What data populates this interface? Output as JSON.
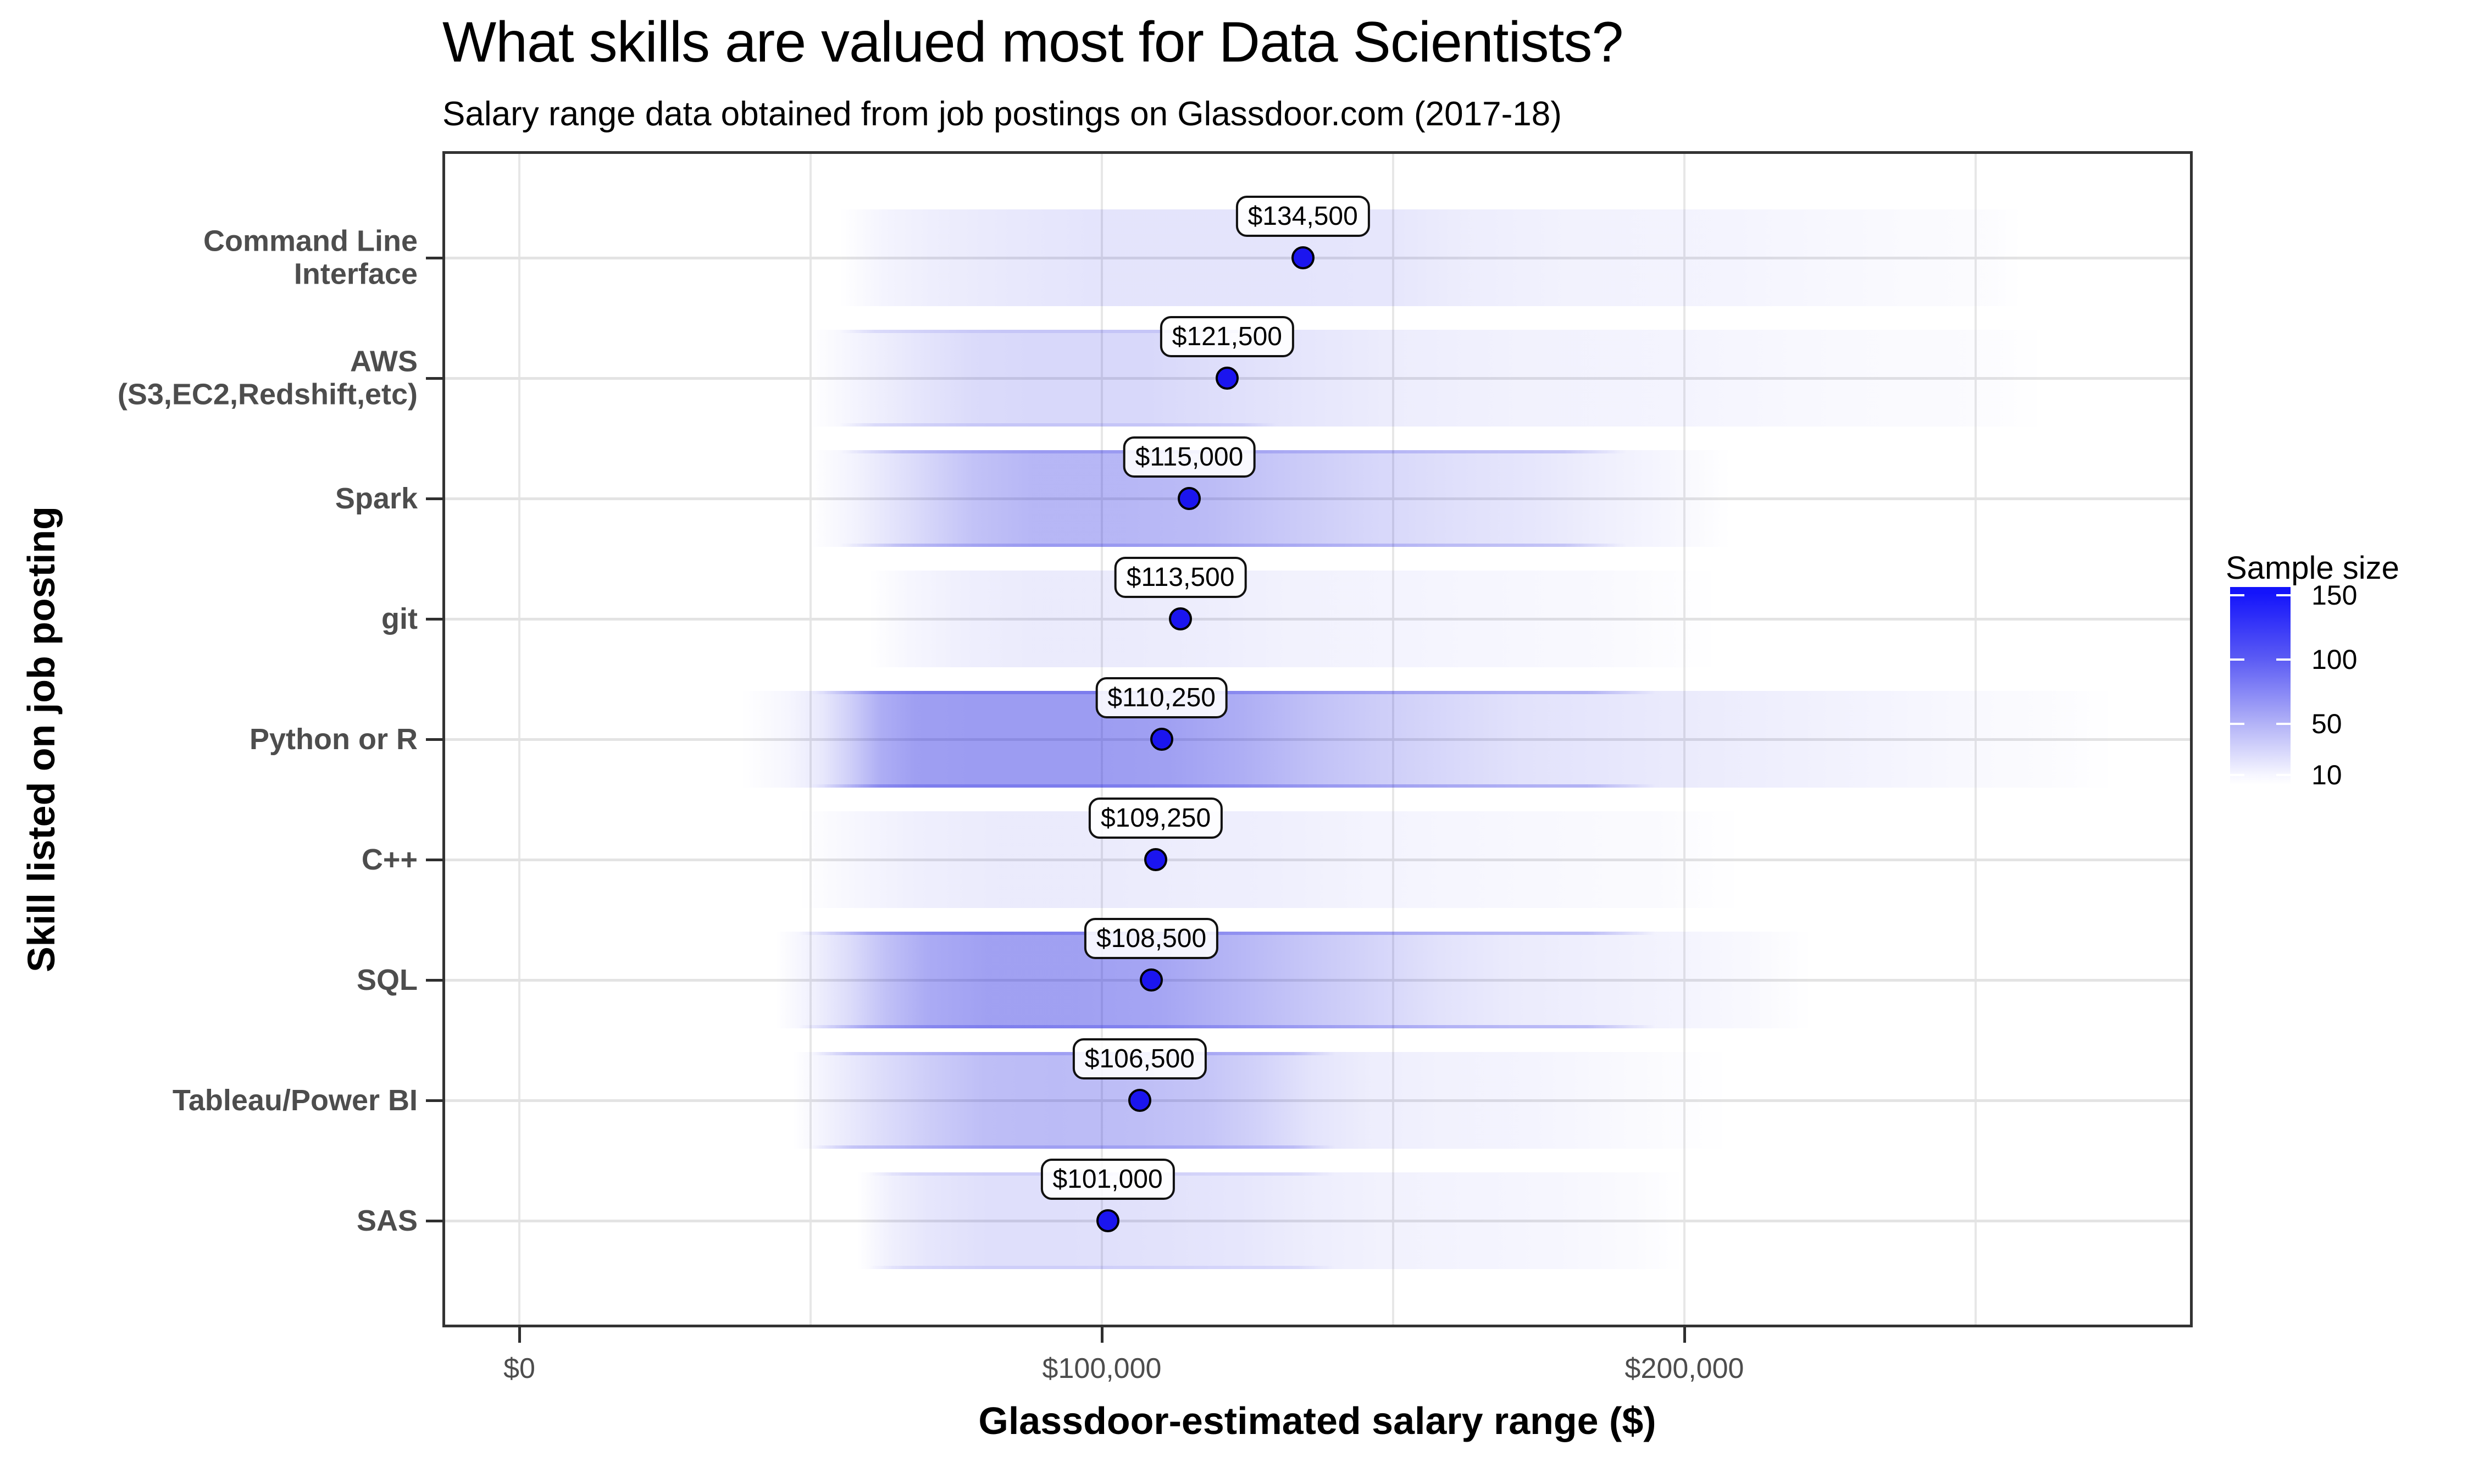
{
  "header": {
    "title": "What skills are valued most for Data Scientists?",
    "subtitle": "Salary range data obtained from job postings on Glassdoor.com (2017-18)"
  },
  "chart_data": {
    "type": "heatmap",
    "subtype": "salary-range-density-strips",
    "title": "What skills are valued most for Data Scientists?",
    "subtitle": "Salary range data obtained from job postings on Glassdoor.com (2017-18)",
    "xlabel": "Glassdoor-estimated salary range ($)",
    "ylabel": "Skill listed on job posting",
    "xlim_k": [
      -13,
      287
    ],
    "grid": "on",
    "x_gridlines_k": [
      0,
      50,
      100,
      150,
      200,
      250
    ],
    "x_ticks": [
      {
        "label": "$0",
        "value_k": 0
      },
      {
        "label": "$100,000",
        "value_k": 100
      },
      {
        "label": "$200,000",
        "value_k": 200
      }
    ],
    "legend": {
      "title": "Sample size",
      "position": "right",
      "ticks": [
        150,
        100,
        50,
        10
      ],
      "color_high": "#1414fb",
      "color_low": "#ffffff"
    },
    "rows": [
      {
        "skill": "Command Line Interface",
        "skill_lines": [
          "Command Line",
          "Interface"
        ],
        "median_label": "$134,500",
        "median_k": 134.5,
        "density": [
          [
            55,
            0
          ],
          [
            63,
            17
          ],
          [
            72,
            27
          ],
          [
            85,
            34
          ],
          [
            100,
            41
          ],
          [
            128,
            41
          ],
          [
            150,
            37
          ],
          [
            163,
            27
          ],
          [
            180,
            20
          ],
          [
            205,
            17
          ],
          [
            232,
            10
          ],
          [
            252,
            5
          ],
          [
            258,
            0
          ]
        ]
      },
      {
        "skill": "AWS (S3,EC2,Redshift,etc)",
        "skill_lines": [
          "AWS",
          "(S3,EC2,Redshift,etc)"
        ],
        "median_label": "$121,500",
        "median_k": 121.5,
        "density": [
          [
            50,
            0
          ],
          [
            58,
            17
          ],
          [
            68,
            37
          ],
          [
            78,
            54
          ],
          [
            88,
            58
          ],
          [
            108,
            58
          ],
          [
            122,
            48
          ],
          [
            136,
            37
          ],
          [
            152,
            27
          ],
          [
            172,
            20
          ],
          [
            196,
            17
          ],
          [
            225,
            10
          ],
          [
            248,
            7
          ],
          [
            262,
            0
          ]
        ],
        "edge": {
          "from_k": 55,
          "to_k": 130
        }
      },
      {
        "skill": "Spark",
        "skill_lines": [
          "Spark"
        ],
        "median_label": "$115,000",
        "median_k": 115,
        "density": [
          [
            50,
            0
          ],
          [
            58,
            20
          ],
          [
            68,
            54
          ],
          [
            78,
            92
          ],
          [
            88,
            109
          ],
          [
            104,
            109
          ],
          [
            118,
            102
          ],
          [
            132,
            82
          ],
          [
            146,
            61
          ],
          [
            160,
            48
          ],
          [
            174,
            37
          ],
          [
            186,
            24
          ],
          [
            197,
            14
          ],
          [
            208,
            0
          ]
        ],
        "edge": {
          "from_k": 55,
          "to_k": 190
        }
      },
      {
        "skill": "git",
        "skill_lines": [
          "git"
        ],
        "median_label": "$113,500",
        "median_k": 113.5,
        "density": [
          [
            60,
            0
          ],
          [
            67,
            14
          ],
          [
            76,
            24
          ],
          [
            88,
            31
          ],
          [
            104,
            31
          ],
          [
            118,
            27
          ],
          [
            132,
            20
          ],
          [
            148,
            17
          ],
          [
            166,
            14
          ],
          [
            186,
            10
          ],
          [
            206,
            0
          ]
        ]
      },
      {
        "skill": "Python or R",
        "skill_lines": [
          "Python or R"
        ],
        "median_label": "$110,250",
        "median_k": 110.25,
        "density": [
          [
            38,
            0
          ],
          [
            46,
            14
          ],
          [
            52,
            34
          ],
          [
            57,
            75
          ],
          [
            62,
            122
          ],
          [
            68,
            146
          ],
          [
            78,
            150
          ],
          [
            98,
            150
          ],
          [
            112,
            143
          ],
          [
            124,
            122
          ],
          [
            136,
            95
          ],
          [
            148,
            75
          ],
          [
            160,
            58
          ],
          [
            172,
            44
          ],
          [
            186,
            37
          ],
          [
            200,
            31
          ],
          [
            216,
            24
          ],
          [
            232,
            17
          ],
          [
            250,
            10
          ],
          [
            264,
            5
          ],
          [
            274,
            0
          ]
        ],
        "edge": {
          "from_k": 50,
          "to_k": 195
        }
      },
      {
        "skill": "C++",
        "skill_lines": [
          "C++"
        ],
        "median_label": "$109,250",
        "median_k": 109.25,
        "density": [
          [
            48,
            0
          ],
          [
            58,
            14
          ],
          [
            68,
            24
          ],
          [
            82,
            31
          ],
          [
            100,
            31
          ],
          [
            116,
            27
          ],
          [
            130,
            24
          ],
          [
            145,
            17
          ],
          [
            162,
            14
          ],
          [
            180,
            10
          ],
          [
            196,
            7
          ],
          [
            210,
            0
          ]
        ]
      },
      {
        "skill": "SQL",
        "skill_lines": [
          "SQL"
        ],
        "median_label": "$108,500",
        "median_k": 108.5,
        "density": [
          [
            44,
            0
          ],
          [
            51,
            24
          ],
          [
            57,
            54
          ],
          [
            63,
            95
          ],
          [
            70,
            126
          ],
          [
            80,
            143
          ],
          [
            96,
            143
          ],
          [
            110,
            136
          ],
          [
            122,
            112
          ],
          [
            134,
            88
          ],
          [
            146,
            65
          ],
          [
            158,
            44
          ],
          [
            170,
            31
          ],
          [
            184,
            24
          ],
          [
            198,
            17
          ],
          [
            212,
            10
          ],
          [
            222,
            0
          ]
        ],
        "edge": {
          "from_k": 48,
          "to_k": 195
        }
      },
      {
        "skill": "Tableau/Power BI",
        "skill_lines": [
          "Tableau/Power BI"
        ],
        "median_label": "$106,500",
        "median_k": 106.5,
        "density": [
          [
            47,
            0
          ],
          [
            54,
            24
          ],
          [
            62,
            51
          ],
          [
            71,
            78
          ],
          [
            80,
            99
          ],
          [
            92,
            102
          ],
          [
            106,
            99
          ],
          [
            118,
            88
          ],
          [
            127,
            68
          ],
          [
            136,
            41
          ],
          [
            146,
            27
          ],
          [
            158,
            20
          ],
          [
            172,
            17
          ],
          [
            188,
            10
          ],
          [
            208,
            0
          ]
        ],
        "edge": {
          "from_k": 50,
          "to_k": 140
        }
      },
      {
        "skill": "SAS",
        "skill_lines": [
          "SAS"
        ],
        "median_label": "$101,000",
        "median_k": 101,
        "density": [
          [
            58,
            0
          ],
          [
            64,
            24
          ],
          [
            70,
            37
          ],
          [
            80,
            48
          ],
          [
            95,
            48
          ],
          [
            110,
            44
          ],
          [
            124,
            37
          ],
          [
            136,
            27
          ],
          [
            148,
            20
          ],
          [
            162,
            17
          ],
          [
            178,
            14
          ],
          [
            192,
            7
          ],
          [
            200,
            0
          ]
        ],
        "edge": {
          "from_k": 60,
          "to_k": 140
        }
      }
    ]
  },
  "colors": {
    "band_rgb": "30,30,225",
    "point_fill": "#1b15ef",
    "point_stroke": "#000000",
    "gridline": "#e7e7e7",
    "panel_border": "#333333",
    "tick_label": "#4d4d4d",
    "legend_high": "#1414fb"
  }
}
